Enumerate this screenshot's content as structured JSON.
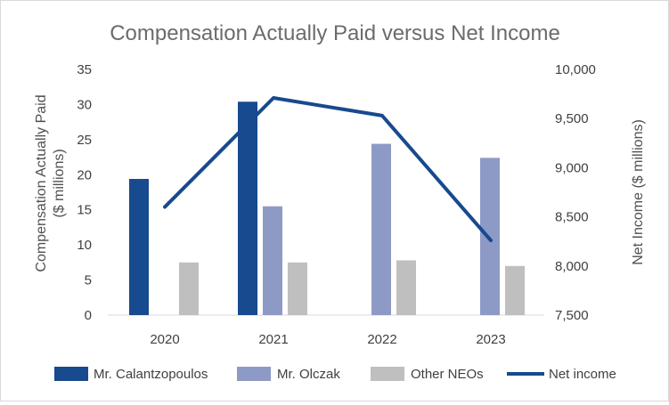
{
  "chart_data": {
    "type": "bar+line",
    "title": "Compensation Actually Paid versus Net Income",
    "categories": [
      "2020",
      "2021",
      "2022",
      "2023"
    ],
    "series": [
      {
        "name": "Mr. Calantzopoulos",
        "type": "bar",
        "axis": "left",
        "color": "#174A8E",
        "values": [
          19.4,
          30.4,
          null,
          null
        ]
      },
      {
        "name": "Mr. Olczak",
        "type": "bar",
        "axis": "left",
        "color": "#8E9AC6",
        "values": [
          null,
          15.5,
          24.4,
          22.4
        ]
      },
      {
        "name": "Other NEOs",
        "type": "bar",
        "axis": "left",
        "color": "#BFBFBF",
        "values": [
          7.5,
          7.5,
          7.8,
          7.0
        ]
      },
      {
        "name": "Net income",
        "type": "line",
        "axis": "right",
        "color": "#174A8E",
        "values": [
          8600,
          9710,
          9530,
          8260
        ]
      }
    ],
    "ylabel": "Compensation Actually Paid ($ millions)",
    "ylabel_lines": [
      "Compensation Actually Paid",
      "($ millions)"
    ],
    "y2label": "Net Income ($ millions)",
    "ylim": [
      0,
      35
    ],
    "yticks": [
      0,
      5,
      10,
      15,
      20,
      25,
      30,
      35
    ],
    "y2lim": [
      7500,
      10000
    ],
    "y2ticks": [
      "7,500",
      "8,000",
      "8,500",
      "9,000",
      "9,500",
      "10,000"
    ],
    "legend_position": "bottom"
  }
}
